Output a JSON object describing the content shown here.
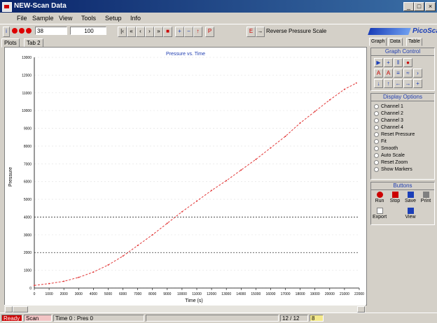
{
  "window": {
    "title": "NEW-Scan Data"
  },
  "menu": [
    "File",
    "Sample",
    "View",
    "Tools",
    "Setup",
    "Info"
  ],
  "toolbar": {
    "field1": "38",
    "field2": "100",
    "status_text": "Reverse Pressure Scale"
  },
  "tabs": [
    "Plots",
    "Tab 2"
  ],
  "plot": {
    "title": "Pressure vs. Time",
    "xlabel": "Time (s)",
    "ylabel": "Pressure"
  },
  "chart_data": {
    "type": "line",
    "title": "Pressure vs. Time",
    "xlabel": "Time (s)",
    "ylabel": "Pressure",
    "x_ticks": [
      "0",
      "1000",
      "2000",
      "3000",
      "4000",
      "5000",
      "6000",
      "7000",
      "8000",
      "9000",
      "10000",
      "11000",
      "12000",
      "13000",
      "14000",
      "15000",
      "16000",
      "17000",
      "18000",
      "19000",
      "20000",
      "21000",
      "22000"
    ],
    "y_ticks": [
      "0",
      "1000",
      "2000",
      "3000",
      "4000",
      "5000",
      "6000",
      "7000",
      "8000",
      "9000",
      "10000",
      "11000",
      "12000",
      "13000"
    ],
    "xlim": [
      0,
      22000
    ],
    "ylim": [
      0,
      13000
    ],
    "series": [
      {
        "color": "#e23a3a",
        "x": [
          0,
          1000,
          2000,
          3000,
          4000,
          5000,
          6000,
          7000,
          8000,
          9000,
          10000,
          11000,
          12000,
          13000,
          14000,
          15000,
          16000,
          17000,
          18000,
          19000,
          20000,
          21000,
          21800
        ],
        "y": [
          150,
          250,
          380,
          600,
          900,
          1300,
          1800,
          2400,
          3000,
          3650,
          4300,
          4900,
          5500,
          6050,
          6650,
          7250,
          7900,
          8550,
          9300,
          9950,
          10600,
          11200,
          11550
        ]
      }
    ],
    "gridlines_y": [
      2000,
      4000
    ],
    "grid": true
  },
  "right_panel": {
    "brand": "PicoScan",
    "tabs": [
      "Graph",
      "Data",
      "Table"
    ],
    "graph_control": {
      "title": "Graph Control"
    },
    "display_options": {
      "title": "Display Options",
      "items": [
        "Channel 1",
        "Channel 2",
        "Channel 3",
        "Channel 4",
        "Reset Pressure",
        "Fit",
        "Smooth",
        "Auto Scale",
        "Reset Zoom",
        "Show Markers"
      ]
    },
    "buttons": {
      "title": "Buttons",
      "items": [
        "Run",
        "Stop",
        "Save",
        "Print",
        "Export",
        "View"
      ]
    }
  },
  "statusbar": {
    "cells": [
      "Ready",
      "Scan",
      "Time 0 : Pres 0",
      "12 / 12",
      "8"
    ]
  },
  "colors": {
    "title_bar": "#0a246a",
    "series": "#e23a3a",
    "accent": "#1f3db0"
  }
}
